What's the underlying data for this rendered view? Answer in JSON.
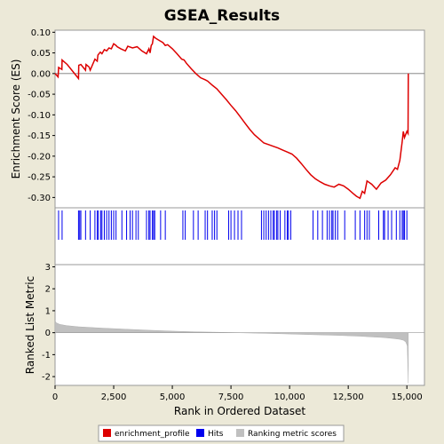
{
  "chart_data": {
    "type": "line",
    "title": "GSEA_Results",
    "xlabel": "Rank in Ordered Dataset",
    "xlim": [
      0,
      15750
    ],
    "xticks": [
      0,
      2500,
      5000,
      7500,
      10000,
      12500,
      15000
    ],
    "xtick_labels": [
      "0",
      "2,500",
      "5,000",
      "7,500",
      "10,000",
      "12,500",
      "15,000"
    ],
    "enrichment_panel": {
      "ylabel": "Enrichment Score (ES)",
      "ylim": [
        -0.325,
        0.105
      ],
      "yticks": [
        0.1,
        0.05,
        0.0,
        -0.05,
        -0.1,
        -0.15,
        -0.2,
        -0.25,
        -0.3
      ],
      "ytick_labels": [
        "0.10",
        "0.05",
        "0.00",
        "-0.05",
        "-0.10",
        "-0.15",
        "-0.20",
        "-0.25",
        "-0.30"
      ],
      "series": [
        {
          "name": "enrichment_profile",
          "color": "#dd0000",
          "x": [
            0,
            130,
            150,
            290,
            300,
            520,
            1000,
            1010,
            1100,
            1300,
            1320,
            1450,
            1500,
            1700,
            1800,
            1830,
            1930,
            2000,
            2100,
            2200,
            2300,
            2400,
            2500,
            2600,
            2650,
            2800,
            3000,
            3100,
            3300,
            3500,
            3700,
            3900,
            4000,
            4050,
            4100,
            4150,
            4200,
            4300,
            4450,
            4600,
            4700,
            4800,
            5000,
            5200,
            5400,
            5500,
            5600,
            5800,
            6000,
            6200,
            6400,
            6500,
            6700,
            6900,
            7100,
            7300,
            7500,
            7700,
            7900,
            8100,
            8300,
            8500,
            8700,
            8900,
            9100,
            9300,
            9500,
            9700,
            9900,
            10100,
            10300,
            10500,
            10700,
            10900,
            11100,
            11300,
            11500,
            11700,
            11900,
            12100,
            12300,
            12500,
            12700,
            12850,
            13000,
            13100,
            13200,
            13300,
            13500,
            13700,
            13900,
            14100,
            14300,
            14500,
            14600,
            14700,
            14800,
            14850,
            14900,
            15000,
            15050,
            15060
          ],
          "y": [
            0.0,
            -0.008,
            0.015,
            0.01,
            0.033,
            0.022,
            -0.012,
            0.02,
            0.022,
            0.008,
            0.022,
            0.016,
            0.008,
            0.035,
            0.03,
            0.045,
            0.052,
            0.048,
            0.058,
            0.055,
            0.062,
            0.06,
            0.072,
            0.068,
            0.065,
            0.06,
            0.055,
            0.066,
            0.062,
            0.065,
            0.055,
            0.048,
            0.06,
            0.05,
            0.068,
            0.072,
            0.09,
            0.085,
            0.08,
            0.075,
            0.068,
            0.07,
            0.06,
            0.048,
            0.035,
            0.033,
            0.025,
            0.012,
            0.0,
            -0.01,
            -0.015,
            -0.018,
            -0.028,
            -0.037,
            -0.05,
            -0.063,
            -0.077,
            -0.09,
            -0.105,
            -0.12,
            -0.135,
            -0.148,
            -0.158,
            -0.168,
            -0.172,
            -0.176,
            -0.18,
            -0.185,
            -0.19,
            -0.195,
            -0.205,
            -0.218,
            -0.232,
            -0.245,
            -0.255,
            -0.262,
            -0.268,
            -0.272,
            -0.275,
            -0.268,
            -0.272,
            -0.28,
            -0.29,
            -0.297,
            -0.302,
            -0.285,
            -0.29,
            -0.26,
            -0.268,
            -0.28,
            -0.265,
            -0.258,
            -0.245,
            -0.228,
            -0.232,
            -0.21,
            -0.165,
            -0.14,
            -0.155,
            -0.14,
            -0.145,
            0.0
          ]
        }
      ]
    },
    "hits": {
      "name": "Hits",
      "color": "#0000ee",
      "x": [
        150,
        300,
        1000,
        1050,
        1100,
        1300,
        1500,
        1700,
        1800,
        1850,
        1950,
        2000,
        2100,
        2200,
        2300,
        2400,
        2500,
        2600,
        2850,
        3050,
        3200,
        3300,
        3450,
        3550,
        3900,
        4000,
        4050,
        4150,
        4200,
        4250,
        4500,
        4700,
        5450,
        5550,
        5900,
        6100,
        6400,
        6500,
        6700,
        6800,
        6900,
        7400,
        7500,
        7650,
        7800,
        7950,
        8800,
        8900,
        9000,
        9100,
        9200,
        9300,
        9350,
        9450,
        9500,
        9600,
        9800,
        9900,
        9950,
        10050,
        11000,
        11200,
        11400,
        11600,
        11700,
        11800,
        11850,
        11950,
        12050,
        12350,
        12800,
        13000,
        13200,
        13300,
        13400,
        13800,
        14000,
        14050,
        14200,
        14350,
        14550,
        14700,
        14800,
        14850,
        14900,
        15000
      ]
    },
    "metric_panel": {
      "name": "Ranking metric scores",
      "color": "#c0c0c0",
      "ylabel": "Ranked List Metric",
      "ylim": [
        -2.4,
        3.1
      ],
      "yticks": [
        3,
        2,
        1,
        0,
        -1,
        -2
      ],
      "ytick_labels": [
        "3",
        "2",
        "1",
        "0",
        "-1",
        "-2"
      ],
      "x": [
        0,
        50,
        200,
        500,
        1000,
        2000,
        3000,
        4000,
        5000,
        6000,
        7000,
        7800,
        9000,
        10000,
        11000,
        12000,
        13000,
        13500,
        14000,
        14400,
        14700,
        14850,
        14950,
        15020,
        15060
      ],
      "y": [
        0.55,
        0.45,
        0.38,
        0.32,
        0.27,
        0.21,
        0.16,
        0.11,
        0.07,
        0.04,
        0.02,
        0.0,
        -0.03,
        -0.06,
        -0.09,
        -0.12,
        -0.16,
        -0.19,
        -0.22,
        -0.26,
        -0.3,
        -0.34,
        -0.42,
        -0.6,
        -2.3
      ]
    },
    "legend": {
      "placement": "bottom",
      "items": [
        {
          "label": "enrichment_profile",
          "color": "#dd0000"
        },
        {
          "label": "Hits",
          "color": "#0000ee"
        },
        {
          "label": "Ranking metric scores",
          "color": "#c0c0c0"
        }
      ]
    }
  }
}
